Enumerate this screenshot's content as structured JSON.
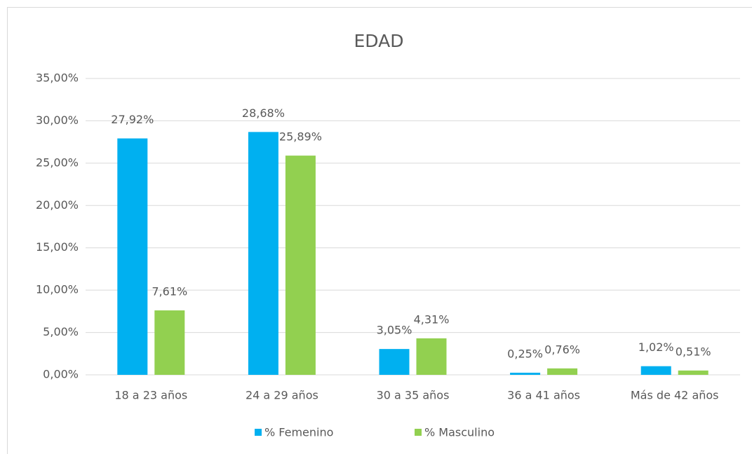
{
  "chart_data": {
    "type": "bar",
    "title": "EDAD",
    "categories": [
      "18 a 23 años",
      "24 a 29 años",
      "30 a 35 años",
      "36 a 41 años",
      "Más de 42 años"
    ],
    "series": [
      {
        "name": "% Femenino",
        "color": "#00b0f0",
        "values": [
          27.92,
          28.68,
          3.05,
          0.25,
          1.02
        ],
        "value_labels": [
          "27,92%",
          "28,68%",
          "3,05%",
          "0,25%",
          "1,02%"
        ]
      },
      {
        "name": "% Masculino",
        "color": "#92d050",
        "values": [
          7.61,
          25.89,
          4.31,
          0.76,
          0.51
        ],
        "value_labels": [
          "7,61%",
          "25,89%",
          "4,31%",
          "0,76%",
          "0,51%"
        ]
      }
    ],
    "ylim": [
      0,
      35
    ],
    "yticks": [
      {
        "value": 0,
        "label": "0,00%"
      },
      {
        "value": 5,
        "label": "5,00%"
      },
      {
        "value": 10,
        "label": "10,00%"
      },
      {
        "value": 15,
        "label": "15,00%"
      },
      {
        "value": 20,
        "label": "20,00%"
      },
      {
        "value": 25,
        "label": "25,00%"
      },
      {
        "value": 30,
        "label": "30,00%"
      },
      {
        "value": 35,
        "label": "35,00%"
      }
    ],
    "grid": true,
    "legend": "bottom"
  }
}
